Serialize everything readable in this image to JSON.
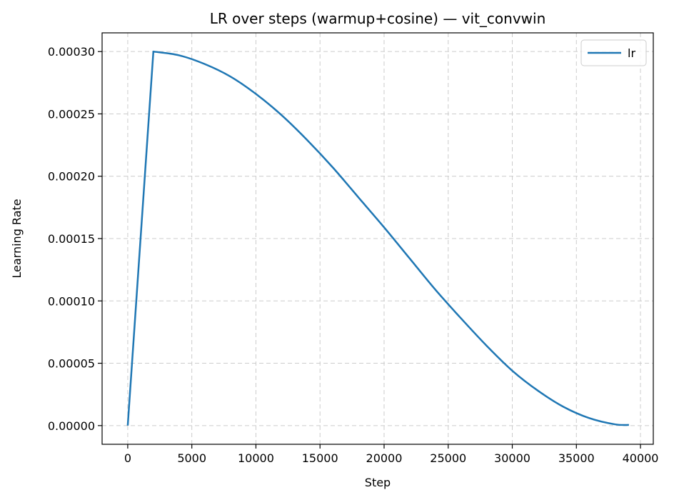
{
  "chart_data": {
    "type": "line",
    "title": "LR over steps (warmup+cosine) — vit_convwin",
    "xlabel": "Step",
    "ylabel": "Learning Rate",
    "xlim": [
      -2000,
      41000
    ],
    "ylim": [
      -1.5e-05,
      0.000315
    ],
    "xticks": [
      0,
      5000,
      10000,
      15000,
      20000,
      25000,
      30000,
      35000,
      40000
    ],
    "xtick_labels": [
      "0",
      "5000",
      "10000",
      "15000",
      "20000",
      "25000",
      "30000",
      "35000",
      "40000"
    ],
    "yticks": [
      0,
      5e-05,
      0.0001,
      0.00015,
      0.0002,
      0.00025,
      0.0003
    ],
    "ytick_labels": [
      "0.00000",
      "0.00005",
      "0.00010",
      "0.00015",
      "0.00020",
      "0.00025",
      "0.00030"
    ],
    "grid": true,
    "legend_position": "top-right",
    "colors": {
      "line": "#1f77b4",
      "grid": "#cccccc"
    },
    "series": [
      {
        "name": "lr",
        "x": [
          0,
          2000,
          4000,
          6000,
          8000,
          10000,
          12000,
          14000,
          16000,
          18000,
          20000,
          22000,
          24000,
          26000,
          28000,
          30000,
          32000,
          34000,
          36000,
          38000,
          39100
        ],
        "y": [
          0,
          0.0003,
          0.000297,
          0.00029,
          0.00028,
          0.000266,
          0.000249,
          0.000229,
          0.000207,
          0.000183,
          0.000159,
          0.000134,
          0.000109,
          8.6e-05,
          6.4e-05,
          4.4e-05,
          2.8e-05,
          1.5e-05,
          6e-06,
          1e-06,
          5e-07
        ]
      }
    ]
  }
}
